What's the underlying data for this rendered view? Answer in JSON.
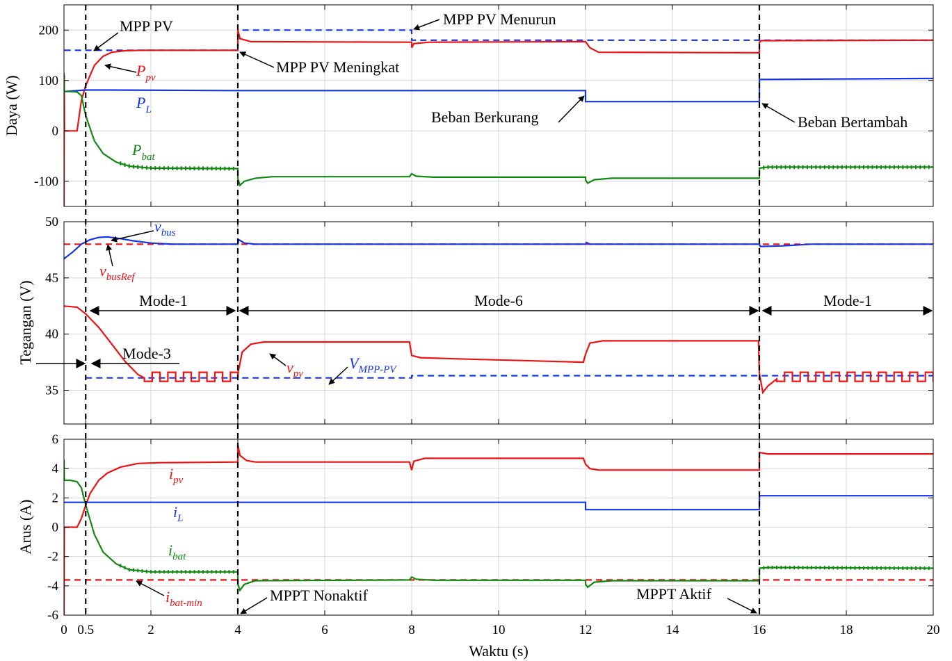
{
  "colors": {
    "pv": "#ee1111",
    "load": "#1133ee",
    "bat": "#118811",
    "black": "#000000"
  },
  "chart_data": {
    "type": "line",
    "xlabel": "Waktu (s)",
    "xlim": [
      0,
      20
    ],
    "xticks": [
      0,
      0.5,
      2,
      4,
      6,
      8,
      10,
      12,
      14,
      16,
      18,
      20
    ],
    "xtick_labels": [
      "0",
      "0.5",
      "2",
      "4",
      "6",
      "8",
      "10",
      "12",
      "14",
      "16",
      "18",
      "20"
    ],
    "grid": true,
    "event_lines": [
      0.5,
      4,
      16
    ],
    "panels": [
      {
        "id": "power",
        "ylabel": "Daya (W)",
        "ylim": [
          -150,
          250
        ],
        "yticks": [
          -100,
          0,
          100,
          200
        ],
        "series": [
          {
            "key": "mpp",
            "color": "#1133ee",
            "dashed": true,
            "points": [
              [
                0.01,
                160
              ],
              [
                4,
                160
              ],
              [
                4.001,
                200
              ],
              [
                8,
                200
              ],
              [
                8.001,
                180
              ],
              [
                20,
                180
              ]
            ]
          },
          {
            "key": "ppv",
            "color": "#ee1111",
            "points": [
              [
                0,
                -150
              ],
              [
                0.005,
                110
              ],
              [
                0.01,
                0
              ],
              [
                0.3,
                0
              ],
              [
                0.4,
                60
              ],
              [
                0.5,
                90
              ],
              [
                0.7,
                130
              ],
              [
                0.9,
                148
              ],
              [
                1.1,
                156
              ],
              [
                1.4,
                159
              ],
              [
                1.8,
                160
              ],
              [
                4,
                160
              ],
              [
                4.001,
                200
              ],
              [
                4.05,
                183
              ],
              [
                4.3,
                177
              ],
              [
                8,
                176
              ],
              [
                8.001,
                165
              ],
              [
                8.05,
                173
              ],
              [
                8.4,
                176
              ],
              [
                12,
                177
              ],
              [
                12.1,
                165
              ],
              [
                12.3,
                156
              ],
              [
                16,
                155
              ],
              [
                16.001,
                176
              ],
              [
                16.05,
                179
              ],
              [
                20,
                180
              ]
            ]
          },
          {
            "key": "pl",
            "color": "#1133ee",
            "points": [
              [
                0,
                78
              ],
              [
                0.5,
                81
              ],
              [
                1,
                81
              ],
              [
                4,
                80
              ],
              [
                12,
                80
              ],
              [
                12.001,
                58
              ],
              [
                16,
                58
              ],
              [
                16.001,
                102
              ],
              [
                20,
                104
              ]
            ]
          },
          {
            "key": "pbat",
            "color": "#118811",
            "points": [
              [
                0,
                115
              ],
              [
                0.005,
                78
              ],
              [
                0.15,
                78
              ],
              [
                0.3,
                77
              ],
              [
                0.4,
                70
              ],
              [
                0.5,
                30
              ],
              [
                0.7,
                -20
              ],
              [
                0.9,
                -45
              ],
              [
                1.2,
                -62
              ],
              [
                1.5,
                -70
              ],
              [
                2,
                -74
              ],
              [
                4,
                -75
              ],
              [
                4.001,
                -95
              ],
              [
                4.05,
                -108
              ],
              [
                4.15,
                -100
              ],
              [
                4.4,
                -94
              ],
              [
                4.8,
                -91
              ],
              [
                7.95,
                -91
              ],
              [
                8,
                -85
              ],
              [
                8.1,
                -90
              ],
              [
                8.5,
                -92
              ],
              [
                12,
                -92
              ],
              [
                12.001,
                -98
              ],
              [
                12.05,
                -104
              ],
              [
                12.2,
                -97
              ],
              [
                12.6,
                -94
              ],
              [
                16,
                -94
              ],
              [
                16.001,
                -74
              ],
              [
                16.2,
                -72
              ],
              [
                20,
                -72
              ]
            ]
          }
        ],
        "annotations": [
          {
            "text": "MPP PV",
            "color": "#1133ee"
          },
          {
            "text": "MPP PV Meningkat"
          },
          {
            "text": "MPP PV Menurun"
          },
          {
            "text": "Beban Berkurang"
          },
          {
            "text": "Beban Bertambah"
          }
        ],
        "labels": [
          {
            "main": "P",
            "sub": "pv",
            "color": "#ee1111"
          },
          {
            "main": "P",
            "sub": "L",
            "color": "#1133ee"
          },
          {
            "main": "P",
            "sub": "bat",
            "color": "#118811"
          }
        ]
      },
      {
        "id": "voltage",
        "ylabel": "Tegangan (V)",
        "ylim": [
          32,
          50
        ],
        "yticks": [
          35,
          40,
          45,
          50
        ],
        "series": [
          {
            "key": "vref",
            "color": "#ee1111",
            "dashed": true,
            "points": [
              [
                0,
                48
              ],
              [
                20,
                48
              ]
            ]
          },
          {
            "key": "vbus",
            "color": "#1133ee",
            "points": [
              [
                0,
                46.7
              ],
              [
                0.2,
                47.3
              ],
              [
                0.4,
                48
              ],
              [
                0.6,
                48.4
              ],
              [
                0.8,
                48.6
              ],
              [
                1,
                48.65
              ],
              [
                1.3,
                48.5
              ],
              [
                1.6,
                48.3
              ],
              [
                2,
                48.1
              ],
              [
                2.5,
                48
              ],
              [
                4,
                48
              ],
              [
                4.02,
                48.4
              ],
              [
                4.15,
                48.1
              ],
              [
                4.4,
                48
              ],
              [
                12,
                48
              ],
              [
                12.02,
                48.15
              ],
              [
                12.1,
                48
              ],
              [
                16,
                48
              ],
              [
                16.02,
                47.8
              ],
              [
                16.5,
                47.85
              ],
              [
                17.2,
                48
              ],
              [
                20,
                48
              ]
            ]
          },
          {
            "key": "vmpp",
            "color": "#1133ee",
            "dashed": true,
            "points": [
              [
                0.5,
                36.1
              ],
              [
                8,
                36.1
              ],
              [
                8.001,
                36.3
              ],
              [
                20,
                36.3
              ]
            ]
          },
          {
            "key": "vpv",
            "color": "#ee1111",
            "points": [
              [
                0,
                42.5
              ],
              [
                0.3,
                42.4
              ],
              [
                0.5,
                41.8
              ],
              [
                0.8,
                40.6
              ],
              [
                1.1,
                39.1
              ],
              [
                1.4,
                37.6
              ],
              [
                1.7,
                36.4
              ],
              [
                1.85,
                36.1
              ],
              [
                4,
                36.1
              ],
              [
                4.001,
                36.5
              ],
              [
                4.1,
                38.4
              ],
              [
                4.3,
                39.1
              ],
              [
                4.6,
                39.3
              ],
              [
                7.95,
                39.3
              ],
              [
                8,
                38.1
              ],
              [
                8.2,
                37.9
              ],
              [
                9,
                37.8
              ],
              [
                11.95,
                37.5
              ],
              [
                12,
                38.2
              ],
              [
                12.1,
                39.2
              ],
              [
                12.4,
                39.4
              ],
              [
                15.98,
                39.4
              ],
              [
                16,
                36.5
              ],
              [
                16.08,
                34.8
              ],
              [
                16.2,
                35.4
              ],
              [
                16.4,
                36
              ],
              [
                20,
                36
              ]
            ]
          }
        ],
        "modes": [
          {
            "text": "Mode-1"
          },
          {
            "text": "Mode-6"
          },
          {
            "text": "Mode-1"
          },
          {
            "text": "Mode-3"
          }
        ],
        "labels": [
          {
            "main": "v",
            "sub": "bus",
            "color": "#1133ee"
          },
          {
            "main": "v",
            "sub": "busRef",
            "color": "#ee1111"
          },
          {
            "main": "v",
            "sub": "pv",
            "color": "#ee1111"
          },
          {
            "main": "V",
            "sub": "MPP-PV",
            "color": "#1133ee"
          }
        ]
      },
      {
        "id": "current",
        "ylabel": "Arus (A)",
        "ylim": [
          -6,
          6
        ],
        "yticks": [
          -6,
          -4,
          -2,
          0,
          2,
          4,
          6
        ],
        "series": [
          {
            "key": "ibatmin",
            "color": "#ee1111",
            "dashed": true,
            "points": [
              [
                0,
                -3.6
              ],
              [
                20,
                -3.6
              ]
            ]
          },
          {
            "key": "ipv",
            "color": "#ee1111",
            "points": [
              [
                0,
                -6
              ],
              [
                0.005,
                0
              ],
              [
                0.3,
                0
              ],
              [
                0.4,
                0.6
              ],
              [
                0.5,
                1.5
              ],
              [
                0.6,
                2.3
              ],
              [
                0.8,
                3.2
              ],
              [
                1,
                3.7
              ],
              [
                1.3,
                4.1
              ],
              [
                1.7,
                4.35
              ],
              [
                2.2,
                4.4
              ],
              [
                4,
                4.45
              ],
              [
                4.001,
                5.6
              ],
              [
                4.05,
                4.9
              ],
              [
                4.2,
                4.55
              ],
              [
                4.4,
                4.45
              ],
              [
                7.95,
                4.45
              ],
              [
                8,
                3.9
              ],
              [
                8.05,
                4.5
              ],
              [
                8.3,
                4.7
              ],
              [
                11.95,
                4.7
              ],
              [
                12,
                4.3
              ],
              [
                12.1,
                4.0
              ],
              [
                12.3,
                3.9
              ],
              [
                16,
                3.9
              ],
              [
                16.001,
                5.1
              ],
              [
                16.2,
                5
              ],
              [
                20,
                5
              ]
            ]
          },
          {
            "key": "il",
            "color": "#1133ee",
            "points": [
              [
                0,
                1.7
              ],
              [
                4,
                1.7
              ],
              [
                12,
                1.7
              ],
              [
                12.001,
                1.2
              ],
              [
                16,
                1.2
              ],
              [
                16.001,
                2.15
              ],
              [
                20,
                2.15
              ]
            ]
          },
          {
            "key": "ibat",
            "color": "#118811",
            "points": [
              [
                0,
                4.6
              ],
              [
                0.005,
                3.2
              ],
              [
                0.15,
                3.2
              ],
              [
                0.3,
                3.1
              ],
              [
                0.4,
                2.7
              ],
              [
                0.5,
                1.5
              ],
              [
                0.7,
                -0.5
              ],
              [
                0.9,
                -1.7
              ],
              [
                1.2,
                -2.5
              ],
              [
                1.5,
                -2.9
              ],
              [
                2,
                -3.05
              ],
              [
                4,
                -3.05
              ],
              [
                4.001,
                -3.9
              ],
              [
                4.05,
                -4.3
              ],
              [
                4.15,
                -3.9
              ],
              [
                4.4,
                -3.65
              ],
              [
                7.95,
                -3.6
              ],
              [
                8,
                -3.4
              ],
              [
                8.1,
                -3.55
              ],
              [
                8.5,
                -3.62
              ],
              [
                12,
                -3.62
              ],
              [
                12.001,
                -3.9
              ],
              [
                12.05,
                -4.1
              ],
              [
                12.2,
                -3.75
              ],
              [
                12.6,
                -3.65
              ],
              [
                16,
                -3.65
              ],
              [
                16.001,
                -2.8
              ],
              [
                16.2,
                -2.75
              ],
              [
                20,
                -2.8
              ]
            ]
          }
        ],
        "annotations": [
          {
            "text": "MPPT Nonaktif"
          },
          {
            "text": "MPPT Aktif"
          }
        ],
        "labels": [
          {
            "main": "i",
            "sub": "pv",
            "color": "#ee1111"
          },
          {
            "main": "i",
            "sub": "L",
            "color": "#1133ee"
          },
          {
            "main": "i",
            "sub": "bat",
            "color": "#118811"
          },
          {
            "main": "i",
            "sub": "bat-min",
            "color": "#ee1111"
          }
        ]
      }
    ]
  }
}
